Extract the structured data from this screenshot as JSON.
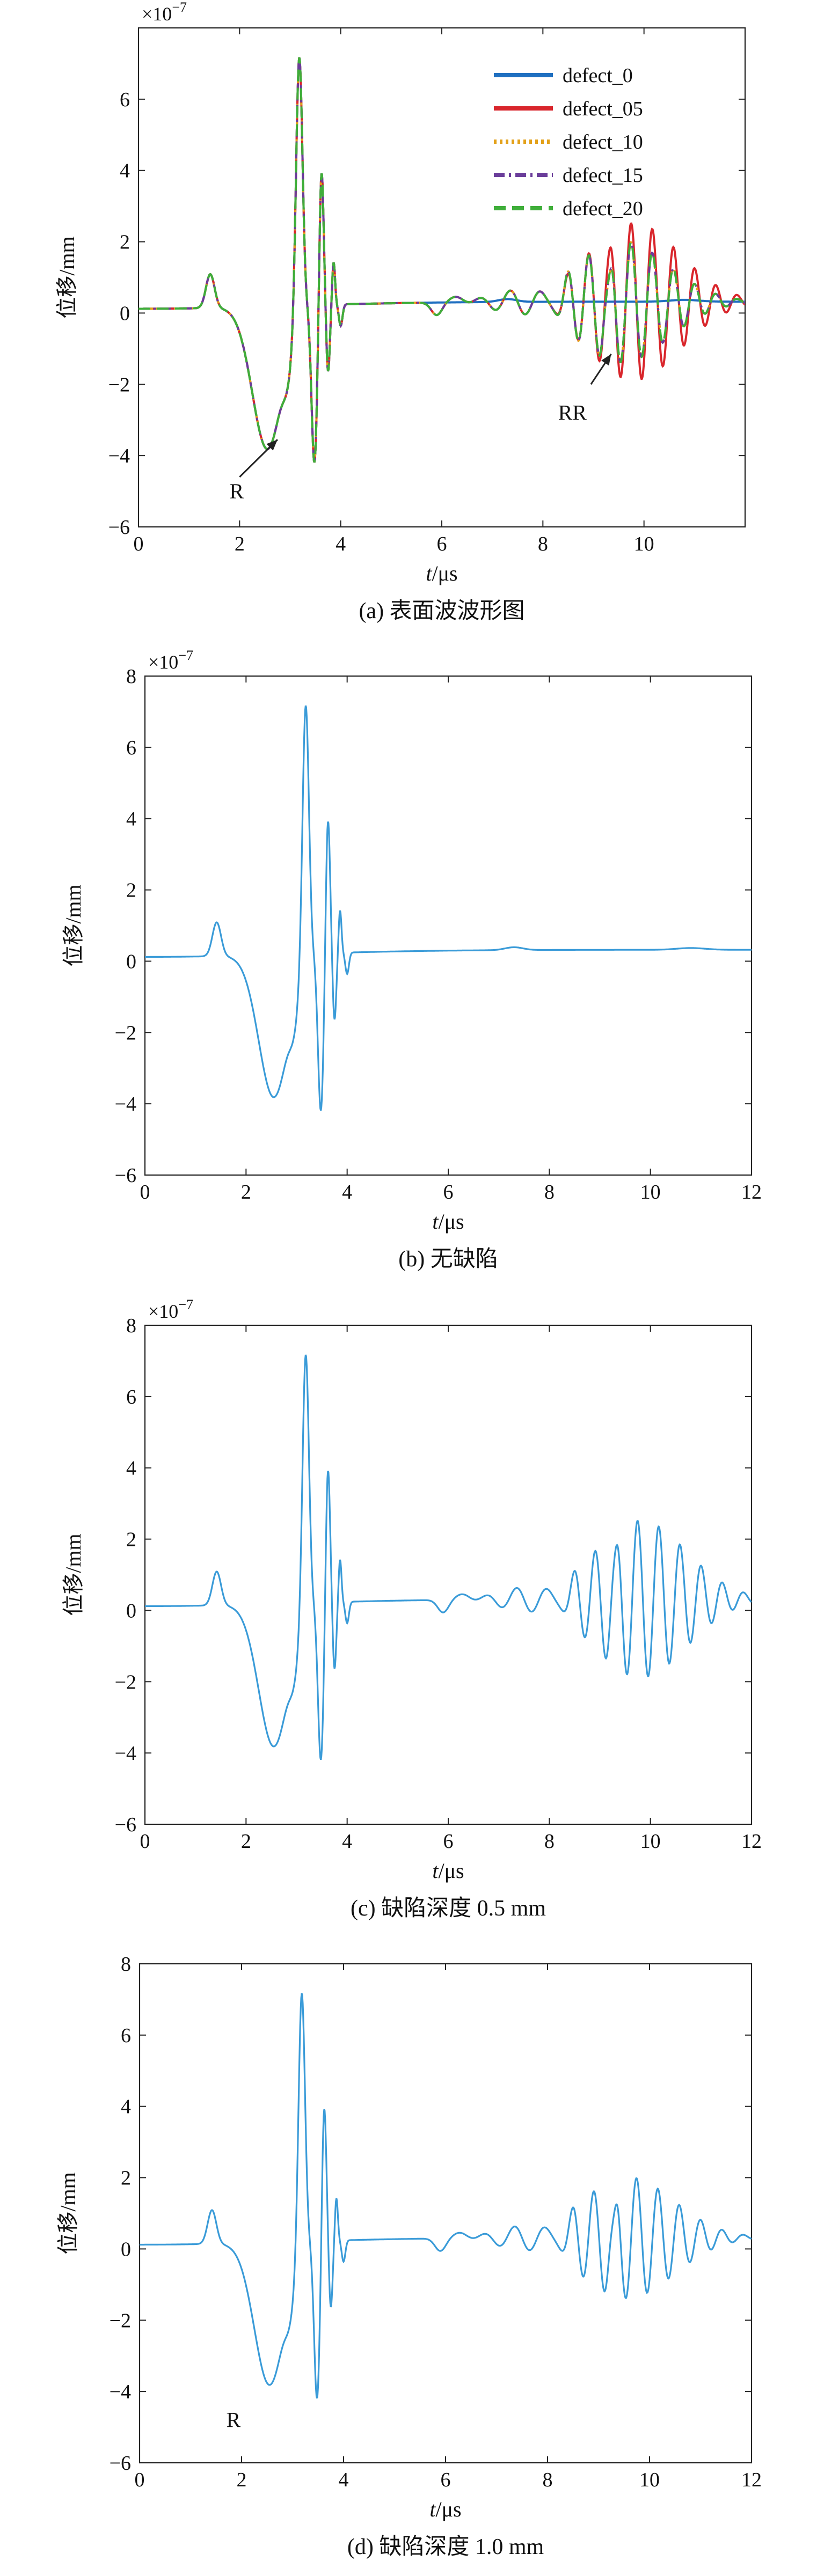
{
  "chart_data": [
    {
      "panel": "a",
      "type": "line",
      "caption": "(a) 表面波波形图",
      "xlabel_var": "t",
      "xlabel_unit": "/μs",
      "ylabel": "位移/mm",
      "exponent": "×10",
      "exponent_power": "−7",
      "xlim": [
        0,
        12
      ],
      "ylim": [
        -6,
        8
      ],
      "xticks": [
        0,
        2,
        4,
        6,
        8,
        10
      ],
      "yticks": [
        -6,
        -4,
        -2,
        0,
        2,
        4,
        6
      ],
      "legend_position": "top-right",
      "annotations": [
        {
          "text": "R",
          "x": 1.8,
          "y": -5.2
        },
        {
          "text": "RR",
          "x": 8.3,
          "y": -3.0
        }
      ],
      "series": [
        {
          "name": "defect_0",
          "color": "#1f6fc0",
          "dash": "solid",
          "defect": 0
        },
        {
          "name": "defect_05",
          "color": "#d9262c",
          "dash": "solid",
          "defect": 0.5
        },
        {
          "name": "defect_10",
          "color": "#e3a11a",
          "dash": "dotted",
          "defect": 1.0
        },
        {
          "name": "defect_15",
          "color": "#6a3d9a",
          "dash": "dashdot",
          "defect": 1.5
        },
        {
          "name": "defect_20",
          "color": "#3fae3a",
          "dash": "dashed",
          "defect": 2.0
        }
      ]
    },
    {
      "panel": "b",
      "type": "line",
      "caption": "(b) 无缺陷",
      "xlabel_var": "t",
      "xlabel_unit": "/μs",
      "ylabel": "位移/mm",
      "exponent": "×10",
      "exponent_power": "−7",
      "xlim": [
        0,
        12
      ],
      "ylim": [
        -6,
        8
      ],
      "xticks": [
        0,
        2,
        4,
        6,
        8,
        10,
        12
      ],
      "yticks": [
        -6,
        -4,
        -2,
        0,
        2,
        4,
        6,
        8
      ],
      "annotations": [],
      "series": [
        {
          "color": "#3a9bd8",
          "defect": 0
        }
      ]
    },
    {
      "panel": "c",
      "type": "line",
      "caption": "(c) 缺陷深度 0.5  mm",
      "xlabel_var": "t",
      "xlabel_unit": "/μs",
      "ylabel": "位移/mm",
      "exponent": "×10",
      "exponent_power": "−7",
      "xlim": [
        0,
        12
      ],
      "ylim": [
        -6,
        8
      ],
      "xticks": [
        0,
        2,
        4,
        6,
        8,
        10,
        12
      ],
      "yticks": [
        -6,
        -4,
        -2,
        0,
        2,
        4,
        6,
        8
      ],
      "annotations": [],
      "series": [
        {
          "color": "#3a9bd8",
          "defect": 0.5
        }
      ]
    },
    {
      "panel": "d",
      "type": "line",
      "caption": "(d) 缺陷深度 1.0 mm",
      "xlabel_var": "t",
      "xlabel_unit": "/μs",
      "ylabel": "位移/mm",
      "exponent": "",
      "exponent_power": "",
      "xlim": [
        0,
        12
      ],
      "ylim": [
        -6,
        8
      ],
      "xticks": [
        0,
        2,
        4,
        6,
        8,
        10,
        12
      ],
      "yticks": [
        -6,
        -4,
        -2,
        0,
        2,
        4,
        6,
        8
      ],
      "annotations": [
        {
          "text": "R",
          "x": 1.7,
          "y": -5.0
        }
      ],
      "series": [
        {
          "color": "#3a9bd8",
          "defect": 1.0
        }
      ]
    }
  ]
}
